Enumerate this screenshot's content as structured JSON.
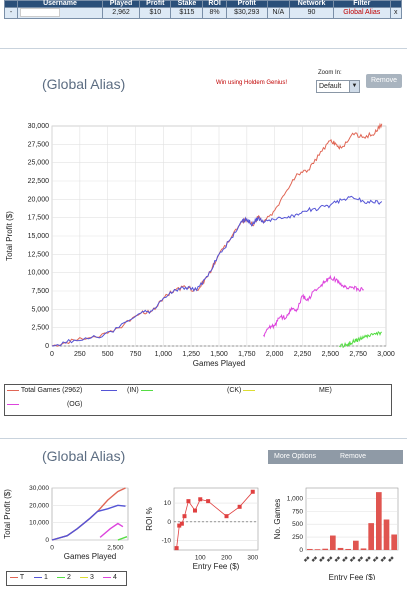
{
  "table": {
    "headers": [
      "",
      "Username",
      "Played",
      "Profit",
      "Stake",
      "ROI",
      "Profit",
      "",
      "Network",
      "Filter",
      ""
    ],
    "row": [
      "-",
      "",
      "2,962",
      "$10",
      "$115",
      "8%",
      "$30,293",
      "N/A",
      "90",
      "Global Alias",
      "x"
    ]
  },
  "panel1": {
    "title": "(Global Alias)",
    "promo": "Win using Holdem Genius!",
    "zoom_label": "Zoom In:",
    "zoom_value": "Default",
    "remove_label": "Remove"
  },
  "chart_data": [
    {
      "type": "line",
      "xlabel": "Games Played",
      "ylabel": "Total Profit ($)",
      "xlim": [
        0,
        3000
      ],
      "ylim": [
        0,
        30000
      ],
      "xticks": [
        "0",
        "250",
        "500",
        "750",
        "1,000",
        "1,250",
        "1,500",
        "1,750",
        "2,000",
        "2,250",
        "2,500",
        "2,750",
        "3,000"
      ],
      "yticks": [
        "0",
        "2,500",
        "5,000",
        "7,500",
        "10,000",
        "12,500",
        "15,000",
        "17,500",
        "20,000",
        "22,500",
        "25,000",
        "27,500",
        "30,000"
      ],
      "series": [
        {
          "name": "Total Games (2962)",
          "color": "#e06655",
          "x": [
            0,
            200,
            400,
            600,
            800,
            900,
            1000,
            1100,
            1200,
            1300,
            1400,
            1500,
            1600,
            1700,
            1750,
            1800,
            1850,
            1900,
            2000,
            2100,
            2200,
            2300,
            2400,
            2500,
            2550,
            2600,
            2700,
            2800,
            2900,
            2962
          ],
          "y": [
            0,
            800,
            1200,
            2500,
            4500,
            4800,
            6500,
            7700,
            8000,
            7600,
            9500,
            12500,
            14500,
            17000,
            17300,
            16500,
            17600,
            16800,
            18500,
            21000,
            23500,
            24000,
            26000,
            28000,
            27500,
            27000,
            29000,
            28500,
            29000,
            30300
          ]
        },
        {
          "name": "(OG)",
          "color": "#5454d6",
          "x": [
            0,
            200,
            400,
            600,
            800,
            900,
            1000,
            1100,
            1200,
            1300,
            1400,
            1500,
            1600,
            1700,
            1750,
            1800,
            1850,
            1900,
            2000,
            2100,
            2200,
            2300,
            2400,
            2500,
            2600,
            2700,
            2800,
            2900,
            2962
          ],
          "y": [
            0,
            800,
            1200,
            2500,
            4500,
            4800,
            6500,
            7700,
            8000,
            7600,
            9500,
            12500,
            14500,
            17000,
            17300,
            16500,
            17500,
            16800,
            17200,
            17500,
            18000,
            18500,
            18800,
            19200,
            19900,
            20300,
            19700,
            19500,
            19700
          ]
        },
        {
          "name": "(IN)",
          "color": "#55dd44",
          "x": [
            2580,
            2650,
            2700,
            2750,
            2800,
            2850,
            2900,
            2962
          ],
          "y": [
            0,
            200,
            500,
            900,
            1100,
            1300,
            1700,
            1900
          ]
        },
        {
          "name": "(CK)",
          "color": "#dddd33",
          "x": [],
          "y": []
        },
        {
          "name": "ME)",
          "color": "#dd44dd",
          "x": [
            1900,
            1950,
            2000,
            2050,
            2100,
            2150,
            2200,
            2250,
            2300,
            2350,
            2400,
            2450,
            2500,
            2550,
            2600,
            2650,
            2700,
            2750,
            2800
          ],
          "y": [
            1500,
            2500,
            2800,
            4000,
            3800,
            5200,
            5000,
            6800,
            6200,
            7500,
            8000,
            8800,
            9500,
            9000,
            8200,
            7800,
            8000,
            7800,
            7700
          ]
        }
      ]
    },
    {
      "type": "line",
      "xlabel": "Games Played",
      "ylabel": "Total Profit ($)",
      "xticks": [
        "0",
        "2,500"
      ],
      "yticks": [
        "0",
        "10,000",
        "20,000",
        "30,000"
      ],
      "xlim": [
        0,
        3000
      ],
      "ylim": [
        0,
        30000
      ],
      "series": [
        {
          "name": "T",
          "color": "#e06655",
          "x": [
            0,
            600,
            1000,
            1500,
            1800,
            2200,
            2600,
            2900
          ],
          "y": [
            0,
            2500,
            6500,
            12500,
            16500,
            23000,
            28000,
            30000
          ]
        },
        {
          "name": "1",
          "color": "#5454d6",
          "x": [
            0,
            600,
            1000,
            1500,
            1800,
            2200,
            2600,
            2900
          ],
          "y": [
            0,
            2500,
            6500,
            12500,
            16500,
            18000,
            20000,
            19500
          ]
        },
        {
          "name": "2",
          "color": "#55dd44",
          "x": [
            2600,
            2960
          ],
          "y": [
            0,
            1900
          ]
        },
        {
          "name": "3",
          "color": "#dddd33",
          "x": [],
          "y": []
        },
        {
          "name": "4",
          "color": "#dd44dd",
          "x": [
            1900,
            2300,
            2600,
            2800
          ],
          "y": [
            1500,
            6500,
            9500,
            7700
          ]
        }
      ]
    },
    {
      "type": "line",
      "xlabel": "Entry Fee ($)",
      "ylabel": "ROI %",
      "xticks": [
        "100",
        "200",
        "300"
      ],
      "yticks": [
        "-10",
        "0",
        "10"
      ],
      "xlim": [
        0,
        320
      ],
      "ylim": [
        -15,
        18
      ],
      "series": [
        {
          "name": "",
          "color": "#e04040",
          "x": [
            10,
            20,
            30,
            40,
            55,
            80,
            100,
            130,
            200,
            250,
            300
          ],
          "y": [
            -14,
            -2,
            -1,
            3,
            11,
            6,
            12,
            11,
            3,
            8,
            16
          ]
        }
      ]
    },
    {
      "type": "bar",
      "xlabel": "Entry Fee ($)",
      "ylabel": "No. Games",
      "yticks": [
        "0",
        "250",
        "500",
        "750",
        "1,000"
      ],
      "ylim": [
        0,
        1200
      ],
      "series": [
        {
          "name": "",
          "color": "#e05550",
          "values": [
            20,
            15,
            25,
            280,
            40,
            20,
            180,
            30,
            520,
            1120,
            590,
            300
          ]
        }
      ]
    }
  ],
  "legend1": [
    "Total Games (2962)",
    "(IN)",
    "(CK)",
    "ME)",
    "(OG)"
  ],
  "panel2": {
    "title": "(Global Alias)",
    "more_options": "More Options",
    "remove_label": "Remove"
  },
  "legend2": [
    "T",
    "1",
    "2",
    "3",
    "4"
  ]
}
